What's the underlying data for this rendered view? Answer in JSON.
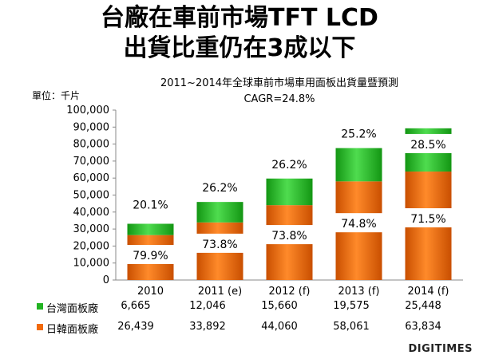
{
  "title_line1": "台廠在車前市場TFT LCD",
  "title_line2": "出貨比重仍在3成以下",
  "unit_label": "單位：千片",
  "logo_text": "DIGITIMES",
  "colors": {
    "green": "#22b322",
    "green_light": "#6ee36e",
    "orange": "#f26a0a",
    "orange_light": "#ffa24a"
  },
  "chart_data": {
    "type": "bar",
    "stacked": true,
    "title": "2011~2014年全球車前市場車用面板出貨量暨預測",
    "subtitle": "CAGR=24.8%",
    "categories": [
      "2010",
      "2011 (e)",
      "2012 (f)",
      "2013 (f)",
      "2014 (f)"
    ],
    "ylim": [
      0,
      100000
    ],
    "yticks": [
      "0",
      "10,000",
      "20,000",
      "30,000",
      "40,000",
      "50,000",
      "60,000",
      "70,000",
      "80,000",
      "90,000",
      "100,000"
    ],
    "series": [
      {
        "name": "日韓面板廠",
        "values": [
          26439,
          33892,
          44060,
          58061,
          63834
        ],
        "display": [
          "26,439",
          "33,892",
          "44,060",
          "58,061",
          "63,834"
        ],
        "share_labels": [
          "79.9%",
          "73.8%",
          "73.8%",
          "74.8%",
          "71.5%"
        ]
      },
      {
        "name": "台灣面板廠",
        "values": [
          6665,
          12046,
          15660,
          19575,
          25448
        ],
        "display": [
          "6,665",
          "12,046",
          "15,660",
          "19,575",
          "25,448"
        ],
        "share_labels": [
          "20.1%",
          "26.2%",
          "26.2%",
          "25.2%",
          "28.5%"
        ]
      }
    ],
    "legend": "bottom-table",
    "grid": false
  }
}
